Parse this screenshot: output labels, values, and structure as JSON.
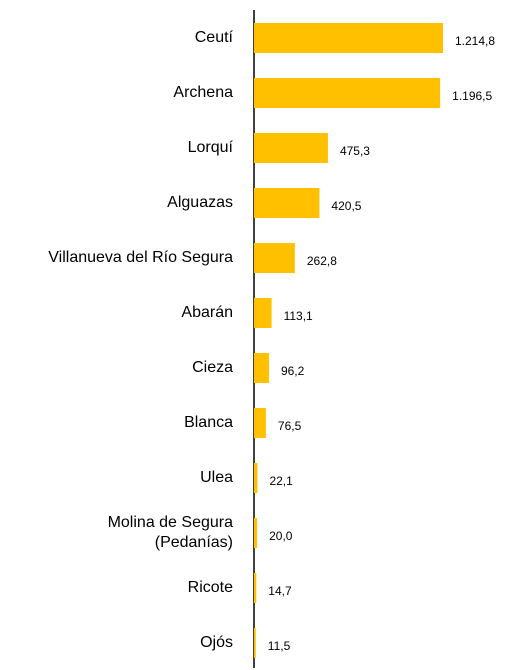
{
  "chart_data": {
    "type": "bar",
    "orientation": "horizontal",
    "categories": [
      "Ceutí",
      "Archena",
      "Lorquí",
      "Alguazas",
      "Villanueva del Río Segura",
      "Abarán",
      "Cieza",
      "Blanca",
      "Ulea",
      "Molina de Segura\n(Pedanías)",
      "Ricote",
      "Ojós"
    ],
    "values": [
      1214.8,
      1196.5,
      475.3,
      420.5,
      262.8,
      113.1,
      96.2,
      76.5,
      22.1,
      20.0,
      14.7,
      11.5
    ],
    "value_labels": [
      "1.214,8",
      "1.196,5",
      "475,3",
      "420,5",
      "262,8",
      "113,1",
      "96,2",
      "76,5",
      "22,1",
      "20,0",
      "14,7",
      "11,5"
    ],
    "color": "#FFC000"
  }
}
